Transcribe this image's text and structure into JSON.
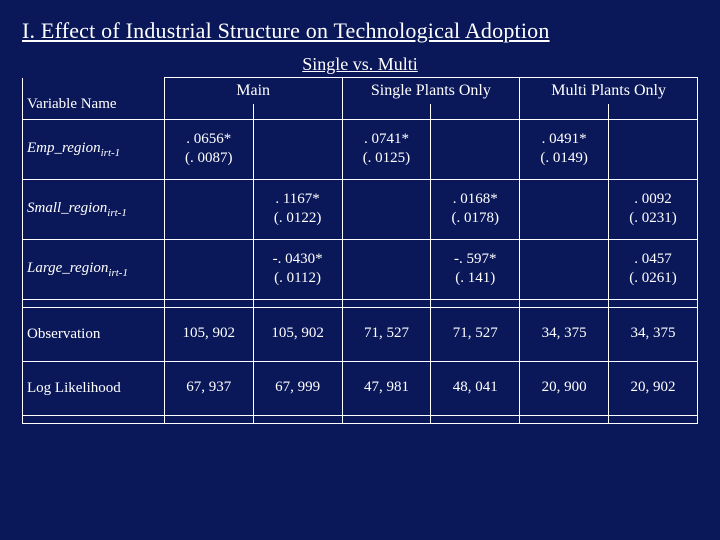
{
  "title": "I. Effect of Industrial Structure on Technological Adoption",
  "subtitle": "Single vs. Multi",
  "headers": {
    "main": "Main",
    "single": "Single Plants Only",
    "multi": "Multi Plants Only",
    "varname": "Variable Name"
  },
  "rows": {
    "emp": {
      "label_html": "<em>Emp_region</em><span class=\"sub\">irt-1</span>",
      "c1": ". 0656*\n(. 0087)",
      "c2": "",
      "c3": ". 0741*\n(. 0125)",
      "c4": "",
      "c5": ". 0491*\n(. 0149)",
      "c6": ""
    },
    "small": {
      "label_html": "<em>Small_region</em><span class=\"sub\">irt-1</span>",
      "c1": "",
      "c2": ". 1167*\n(. 0122)",
      "c3": "",
      "c4": ". 0168*\n(. 0178)",
      "c5": "",
      "c6": ". 0092\n(. 0231)"
    },
    "large": {
      "label_html": "<em>Large_region</em><span class=\"sub\">irt-1</span>",
      "c1": "",
      "c2": "-. 0430*\n(. 0112)",
      "c3": "",
      "c4": "-. 597*\n(. 141)",
      "c5": "",
      "c6": ". 0457\n(. 0261)"
    },
    "obs": {
      "label": "Observation",
      "c1": "105, 902",
      "c2": "105, 902",
      "c3": "71, 527",
      "c4": "71, 527",
      "c5": "34, 375",
      "c6": "34, 375"
    },
    "ll": {
      "label": "Log Likelihood",
      "c1": "67, 937",
      "c2": "67, 999",
      "c3": "47, 981",
      "c4": "48, 041",
      "c5": "20, 900",
      "c6": "20, 902"
    }
  },
  "style": {
    "background_color": "#0a1758",
    "text_color": "#ffffff",
    "border_color": "#ffffff",
    "title_fontsize": 22,
    "subtitle_fontsize": 18,
    "cell_fontsize": 15,
    "font_family": "Georgia, 'Times New Roman', serif"
  }
}
